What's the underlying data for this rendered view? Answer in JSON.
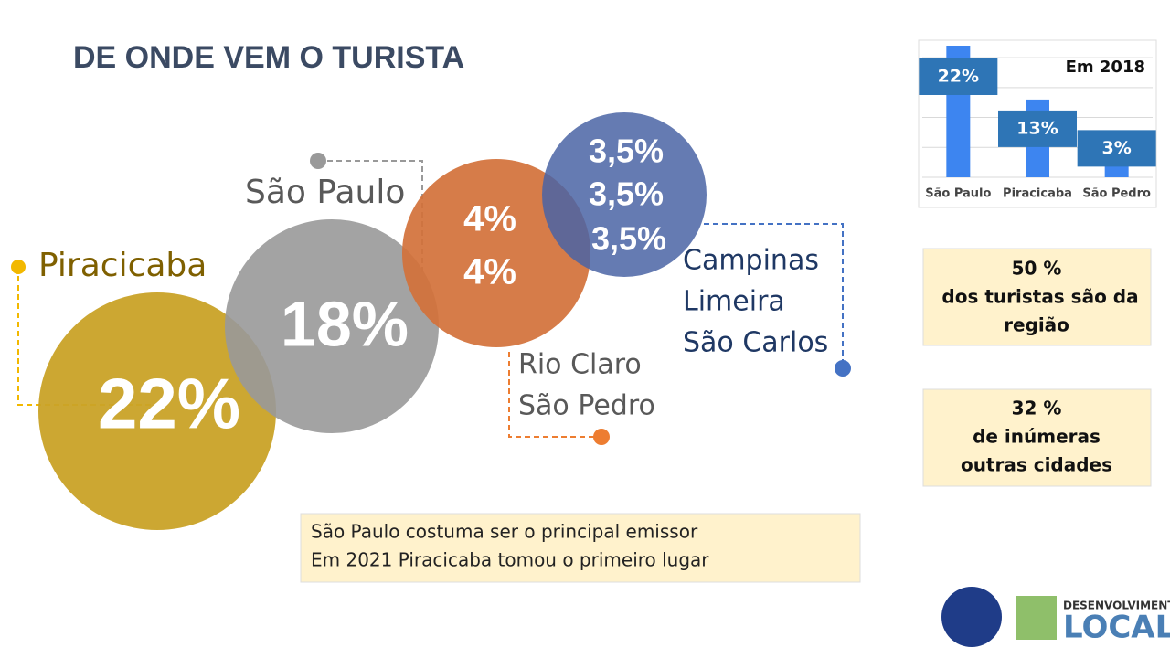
{
  "title": "DE ONDE VEM O TURISTA",
  "bubbles": [
    {
      "cities": [
        "Piracicaba"
      ],
      "labels": [
        "22%"
      ]
    },
    {
      "cities": [
        "São Paulo"
      ],
      "labels": [
        "18%"
      ]
    },
    {
      "cities": [
        "Rio Claro",
        "São Pedro"
      ],
      "labels": [
        "4%",
        "4%"
      ]
    },
    {
      "cities": [
        "Campinas",
        "Limeira",
        "São Carlos"
      ],
      "labels": [
        "3,5%",
        "3,5%",
        "3,5%"
      ]
    }
  ],
  "chart_data": {
    "type": "bar",
    "title": "Em 2018",
    "categories": [
      "São Paulo",
      "Piracicaba",
      "São Pedro"
    ],
    "values": [
      22,
      13,
      3
    ],
    "value_labels": [
      "22%",
      "13%",
      "3%"
    ],
    "color": "#3d85f0",
    "ylim": [
      0,
      22
    ],
    "yticks": [
      0,
      5,
      10,
      15,
      20
    ],
    "grid": true
  },
  "boxes": [
    [
      "50 %",
      "dos turistas são da",
      "região"
    ],
    [
      "32 %",
      "de inúmeras",
      "outras cidades"
    ]
  ],
  "note": [
    "São Paulo costuma ser o principal emissor",
    "Em 2021 Piracicaba tomou o primeiro lugar"
  ],
  "logo": [
    "DESENVOLVIMENTO",
    "LOCAL"
  ]
}
